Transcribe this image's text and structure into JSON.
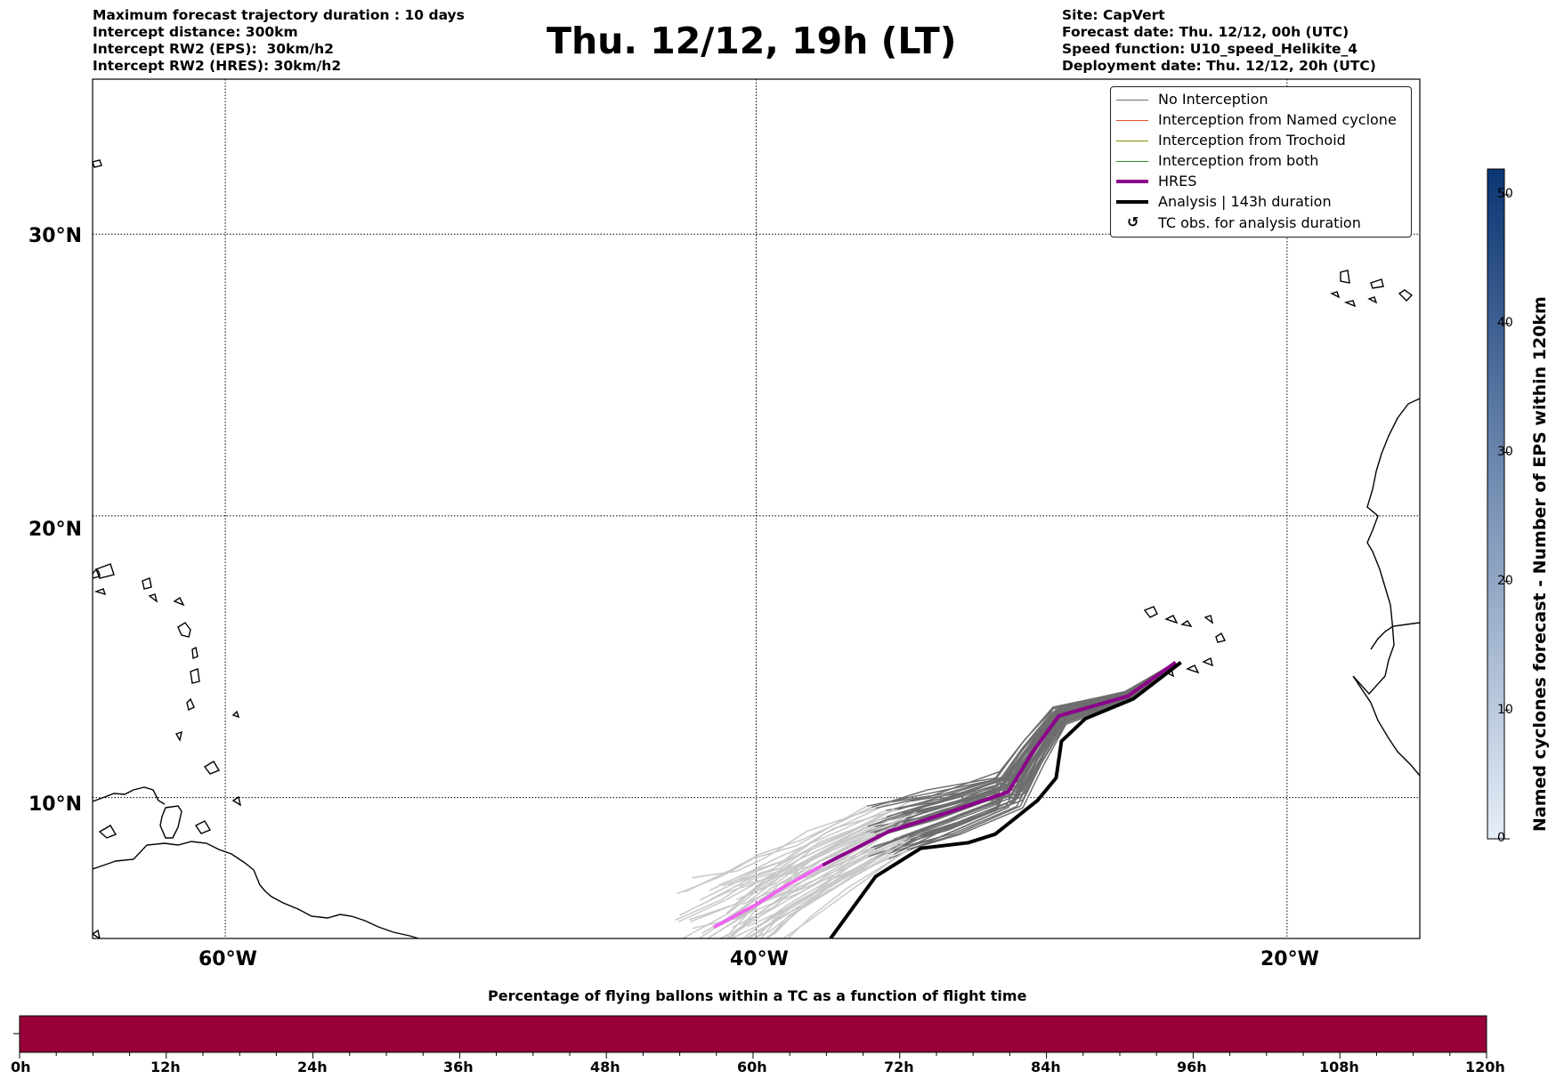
{
  "header_left": {
    "line1": "Maximum forecast trajectory duration : 10 days",
    "line2": "Intercept distance: 300km",
    "line3": "Intercept RW2 (EPS):  30km/h2",
    "line4": "Intercept RW2 (HRES): 30km/h2"
  },
  "header_right": {
    "line1": "Site: CapVert",
    "line2": "Forecast date: Thu. 12/12, 00h (UTC)",
    "line3": "Speed function: U10_speed_Helikite_4",
    "line4": "Deployment date: Thu. 12/12, 20h (UTC)"
  },
  "title": "Thu. 12/12, 19h (LT)",
  "map": {
    "lat_labels": [
      "30°N",
      "20°N",
      "10°N"
    ],
    "lon_labels": [
      "60°W",
      "40°W",
      "20°W"
    ],
    "lon_range": [
      -65,
      -15
    ],
    "lat_range": [
      5,
      35.5
    ],
    "grid": true,
    "colors": {
      "no_interception": "#6e6e6e",
      "no_interception_late": "#c8c8c8",
      "named_cyclone": "#e0501e",
      "trochoid": "#8a8a00",
      "both": "#2e8b2e",
      "hres": "#8b008b",
      "hres_late": "#ee66ee",
      "analysis": "#000000"
    },
    "start_point": {
      "lon": -24.2,
      "lat": 14.8
    },
    "hres_track": [
      [
        -24.2,
        14.8
      ],
      [
        -26,
        13.6
      ],
      [
        -28.6,
        12.9
      ],
      [
        -29.6,
        11.6
      ],
      [
        -30.5,
        10.2
      ],
      [
        -33,
        9.4
      ],
      [
        -35,
        8.8
      ],
      [
        -37.5,
        7.6
      ],
      [
        -39,
        6.8
      ],
      [
        -40,
        6.2
      ],
      [
        -41.6,
        5.4
      ]
    ],
    "analysis_track": [
      [
        -24,
        14.8
      ],
      [
        -25.8,
        13.5
      ],
      [
        -27.6,
        12.8
      ],
      [
        -28.5,
        12.0
      ],
      [
        -28.7,
        10.7
      ],
      [
        -29.4,
        9.9
      ],
      [
        -31.0,
        8.7
      ],
      [
        -32.0,
        8.4
      ],
      [
        -33.8,
        8.2
      ],
      [
        -35.5,
        7.2
      ],
      [
        -37.2,
        5.0
      ]
    ]
  },
  "legend": {
    "items": [
      {
        "label": "No Interception",
        "color": "#6e6e6e",
        "width": 1.2
      },
      {
        "label": "Interception from Named cyclone",
        "color": "#e0501e",
        "width": 1.2
      },
      {
        "label": "Interception from Trochoid",
        "color": "#8a8a00",
        "width": 1.2
      },
      {
        "label": "Interception from both",
        "color": "#2e8b2e",
        "width": 1.2
      },
      {
        "label": "HRES",
        "color": "#8b008b",
        "width": 4
      },
      {
        "label": "Analysis | 143h duration",
        "color": "#000000",
        "width": 4
      }
    ],
    "marker_label": "TC obs. for analysis duration",
    "marker_icon": "↺"
  },
  "colorbar": {
    "label": "Named cyclones forecast - Number of EPS within 120km",
    "ticks": [
      "0",
      "10",
      "20",
      "30",
      "40",
      "50"
    ],
    "range": [
      0,
      52
    ],
    "color_low": "#e6eef8",
    "color_high": "#0b3573"
  },
  "flight_bar": {
    "title": "Percentage of flying ballons within a TC as a function of flight time",
    "ticks": [
      "0h",
      "12h",
      "24h",
      "36h",
      "48h",
      "60h",
      "72h",
      "84h",
      "96h",
      "108h",
      "120h"
    ],
    "fill_color": "#99003a",
    "fill_fraction": 1.0
  }
}
